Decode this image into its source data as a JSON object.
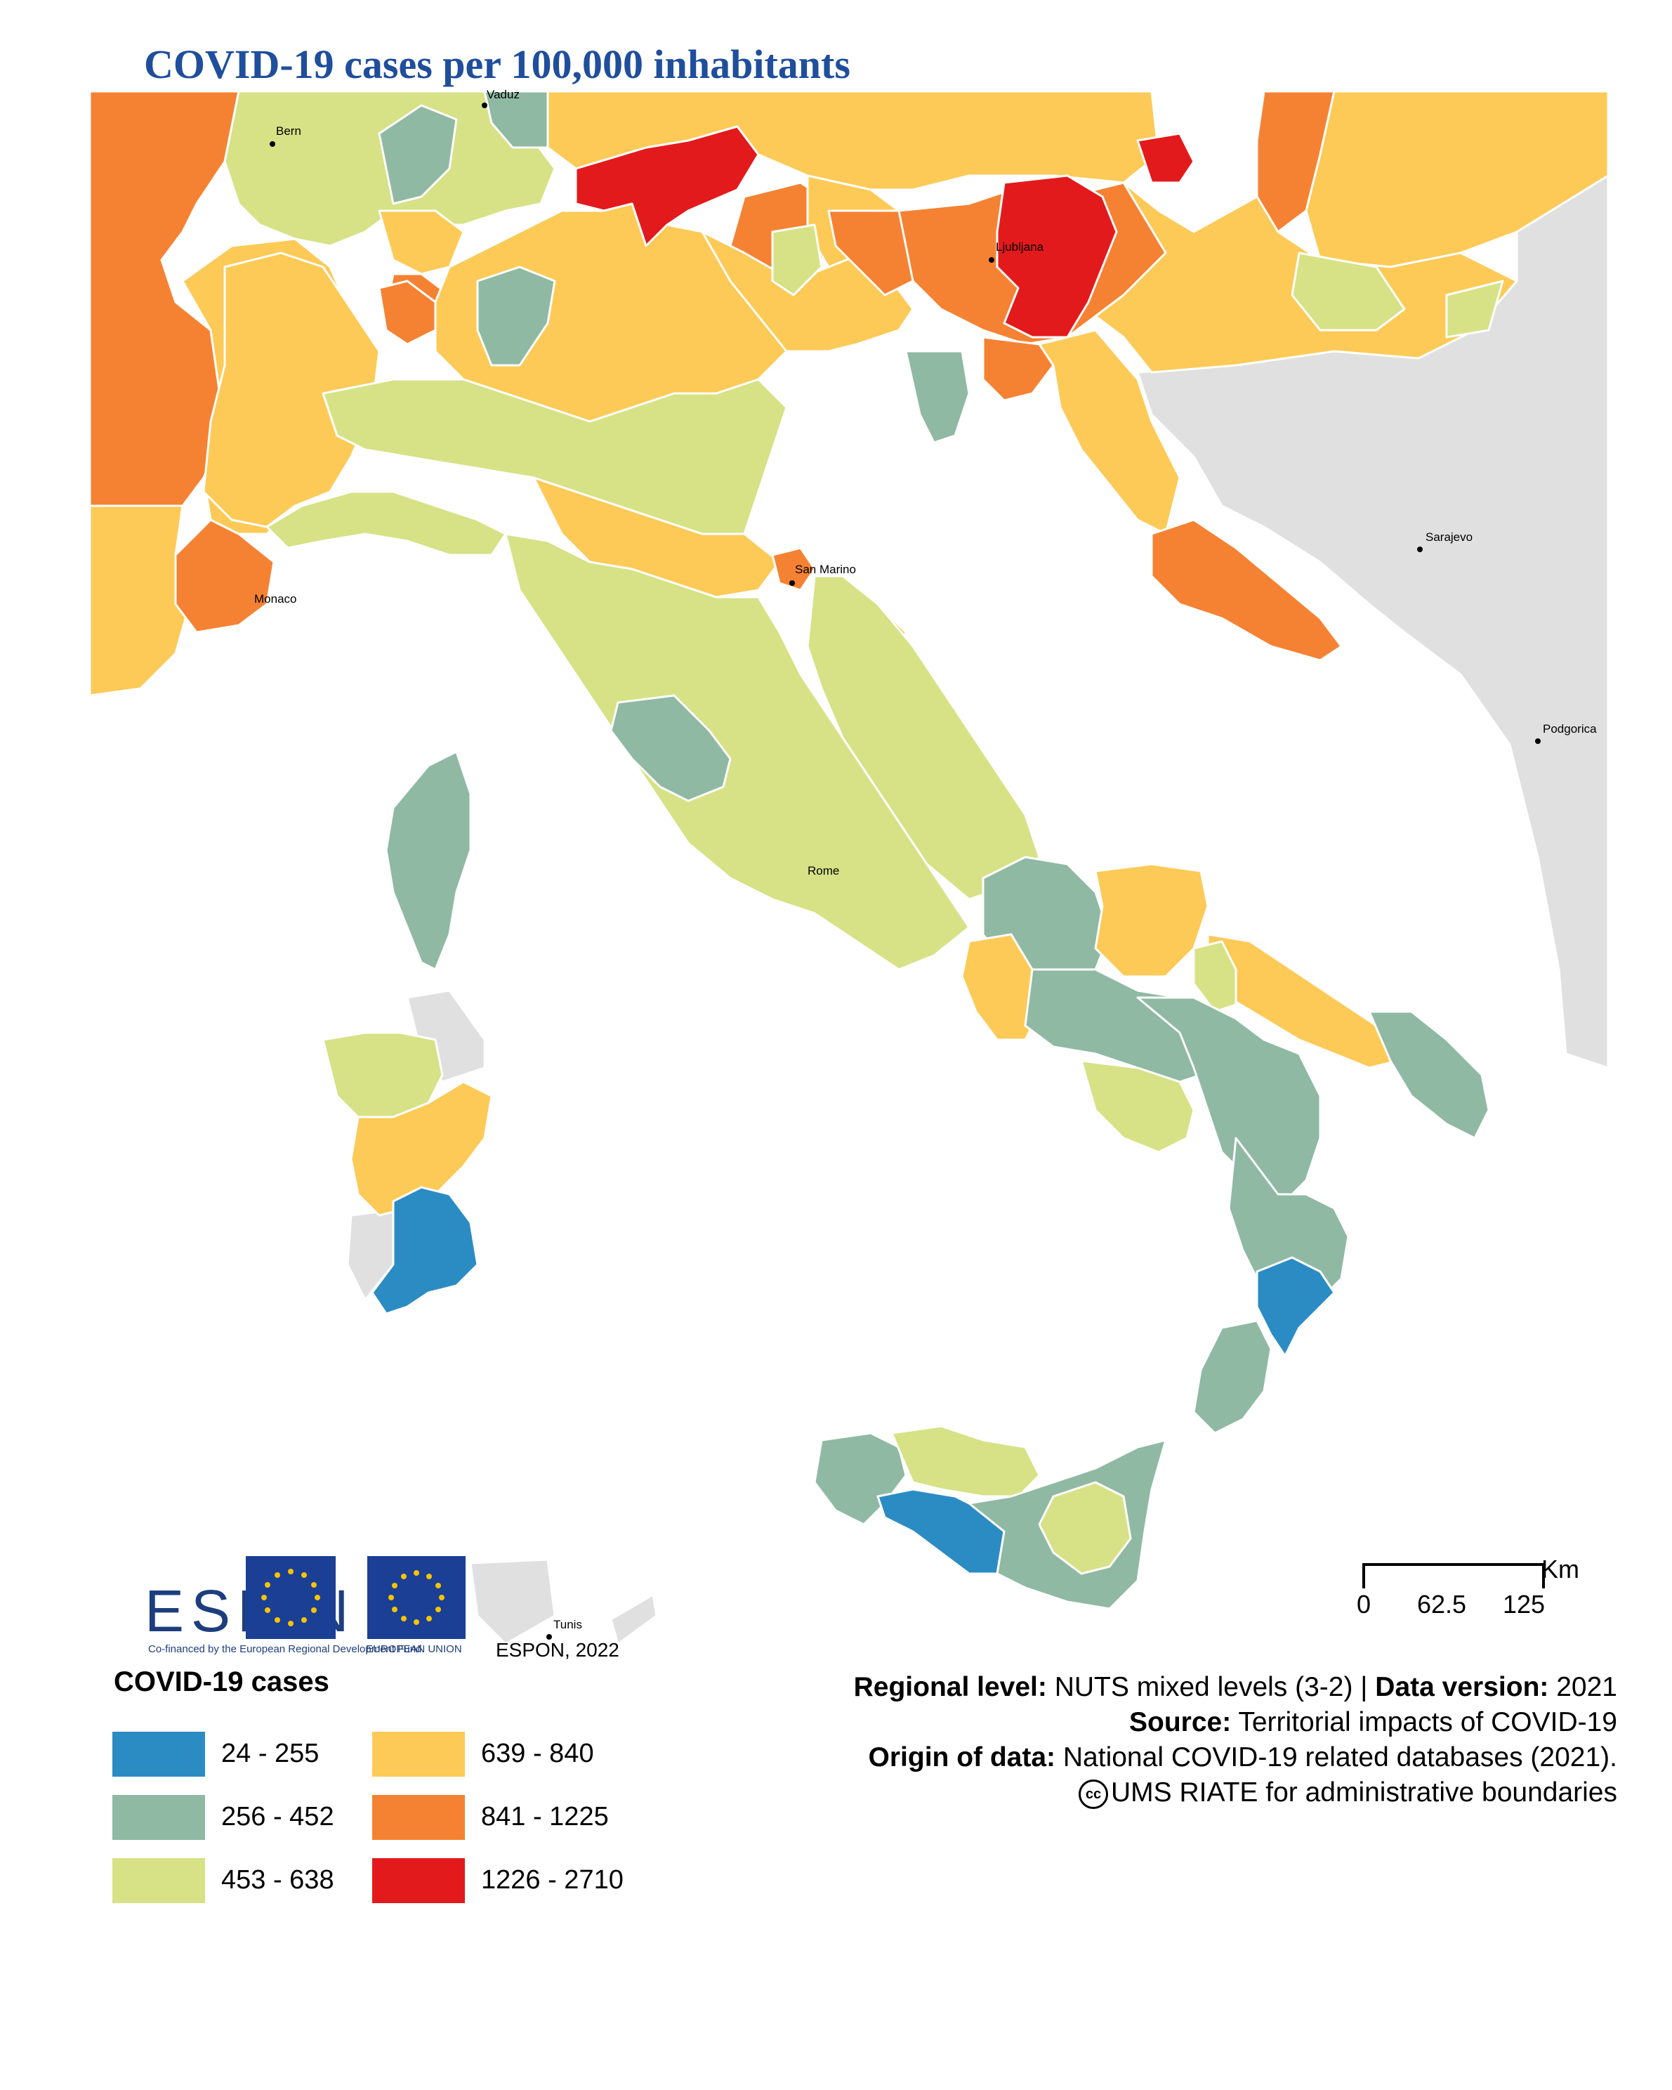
{
  "title": "COVID-19 cases per 100,000 inhabitants",
  "colors": {
    "sea": "#ffffff",
    "no_data": "#e0e0e0",
    "class_1": "#2b8cc4",
    "class_2": "#8fb9a3",
    "class_3": "#d6e285",
    "class_4": "#fdca57",
    "class_5": "#f58233",
    "class_6": "#e31a1c"
  },
  "cities": [
    {
      "name": "Vaduz"
    },
    {
      "name": "Bern"
    },
    {
      "name": "Ljubljana"
    },
    {
      "name": "San Marino"
    },
    {
      "name": "Monaco"
    },
    {
      "name": "Sarajevo"
    },
    {
      "name": "Podgorica"
    },
    {
      "name": "Rome"
    },
    {
      "name": "Tunis"
    }
  ],
  "branding": {
    "espon_wordmark": "ESP N",
    "cofinanced": "Co-financed by the European Regional Development Fund",
    "eu_label": "EUROPEAN UNION",
    "espon_year": "ESPON, 2022"
  },
  "legend": {
    "title": "COVID-19 cases",
    "items": [
      {
        "label": "24 - 255",
        "color": "#2b8cc4"
      },
      {
        "label": "256 - 452",
        "color": "#8fb9a3"
      },
      {
        "label": "453 - 638",
        "color": "#d6e285"
      },
      {
        "label": "639 - 840",
        "color": "#fdca57"
      },
      {
        "label": "841 - 1225",
        "color": "#f58233"
      },
      {
        "label": "1226 - 2710",
        "color": "#e31a1c"
      }
    ]
  },
  "scale": {
    "unit": "Km",
    "ticks": [
      "0",
      "62.5",
      "125"
    ]
  },
  "credits": {
    "regional_level_label": "Regional level:",
    "regional_level_value": "NUTS mixed levels (3-2) |",
    "data_version_label": "Data version:",
    "data_version_value": "2021",
    "source_label": "Source:",
    "source_value": "Territorial impacts of COVID-19",
    "origin_label": "Origin of data:",
    "origin_value": "National COVID-19 related databases (2021).",
    "cc_symbol": "cc",
    "boundaries": "UMS RIATE for administrative boundaries"
  }
}
